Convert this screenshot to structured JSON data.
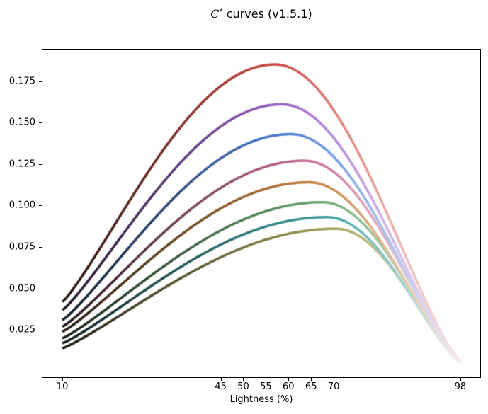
{
  "figure": {
    "title_c": "C",
    "title_sup": "*",
    "title_rest": " curves (v1.5.1)"
  },
  "chart_data": {
    "type": "line",
    "title": "C* curves (v1.5.1)",
    "xlabel": "Lightness (%)",
    "ylabel": "",
    "grid": false,
    "legend": "none",
    "xlim": [
      5.6,
      102.4
    ],
    "ylim": [
      -0.0035,
      0.194
    ],
    "x_data_range": [
      10,
      98
    ],
    "xticks": [
      10,
      45,
      50,
      55,
      60,
      65,
      70,
      98
    ],
    "xtick_labels": [
      "10",
      "45",
      "50",
      "55",
      "60",
      "65",
      "70",
      "98"
    ],
    "yticks": [
      0.025,
      0.05,
      0.075,
      0.1,
      0.125,
      0.15,
      0.175
    ],
    "ytick_labels": [
      "0.025",
      "0.050",
      "0.075",
      "0.100",
      "0.125",
      "0.150",
      "0.175"
    ],
    "line_width": 3.5,
    "gradient_note": "each curve is colored by lightness along x: near-black at L=10, pure hue at its peak, near-white at L=98",
    "shape": {
      "rise_exponent": 1.15,
      "fall_exponent": 1.3
    },
    "series": [
      {
        "name": "red",
        "peak_x": 57.0,
        "peak_y": 0.185,
        "start_y": 0.042,
        "end_y": 0.0068,
        "color": "#cc4a40",
        "color_dark": "#210c0a",
        "color_light": "#f9e9e7"
      },
      {
        "name": "purple",
        "peak_x": 58.5,
        "peak_y": 0.161,
        "start_y": 0.037,
        "end_y": 0.0066,
        "color": "#9b5fc6",
        "color_dark": "#190f20",
        "color_light": "#f3ecf9"
      },
      {
        "name": "blue",
        "peak_x": 60.5,
        "peak_y": 0.143,
        "start_y": 0.031,
        "end_y": 0.0064,
        "color": "#4d80d6",
        "color_dark": "#0d1522",
        "color_light": "#ecf2fb"
      },
      {
        "name": "pink",
        "peak_x": 63.5,
        "peak_y": 0.127,
        "start_y": 0.027,
        "end_y": 0.0062,
        "color": "#c66a94",
        "color_dark": "#201118",
        "color_light": "#f8edf3"
      },
      {
        "name": "orange",
        "peak_x": 64.5,
        "peak_y": 0.114,
        "start_y": 0.024,
        "end_y": 0.006,
        "color": "#c07d3c",
        "color_dark": "#1f140a",
        "color_light": "#f7f0e6"
      },
      {
        "name": "green",
        "peak_x": 67.5,
        "peak_y": 0.102,
        "start_y": 0.02,
        "end_y": 0.0058,
        "color": "#69a86e",
        "color_dark": "#111b12",
        "color_light": "#eef5ef"
      },
      {
        "name": "teal",
        "peak_x": 68.5,
        "peak_y": 0.093,
        "start_y": 0.017,
        "end_y": 0.0056,
        "color": "#3c9ea2",
        "color_dark": "#0a1a1a",
        "color_light": "#ebf4f4"
      },
      {
        "name": "olive",
        "peak_x": 70.5,
        "peak_y": 0.086,
        "start_y": 0.014,
        "end_y": 0.0054,
        "color": "#a3a055",
        "color_dark": "#1a1a0e",
        "color_light": "#f5f5e9"
      }
    ]
  }
}
